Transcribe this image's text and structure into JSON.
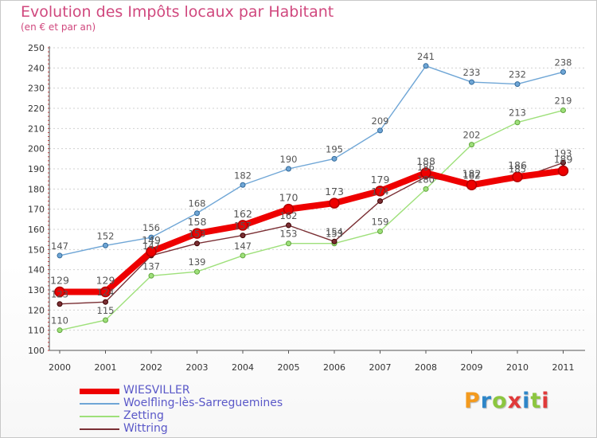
{
  "title": "Evolution des Impôts locaux par Habitant",
  "subtitle": "(en € et par an)",
  "logo": {
    "text": "Proxiti",
    "colors": [
      "#f39a1e",
      "#2e86c8",
      "#8cc63f",
      "#e03a3a",
      "#2e86c8",
      "#8cc63f",
      "#e03a3a"
    ]
  },
  "chart_data": {
    "type": "line",
    "title": "Evolution des Impôts locaux par Habitant",
    "subtitle": "(en € et par an)",
    "xlabel": "",
    "ylabel": "",
    "x": [
      "2000",
      "2001",
      "2002",
      "2003",
      "2004",
      "2005",
      "2006",
      "2007",
      "2008",
      "2009",
      "2010",
      "2011"
    ],
    "ylim": [
      100,
      250
    ],
    "yticks": [
      100,
      110,
      120,
      130,
      140,
      150,
      160,
      170,
      180,
      190,
      200,
      210,
      220,
      230,
      240,
      250
    ],
    "grid": "horizontal dashed",
    "legend_position": "bottom-left",
    "series": [
      {
        "name": "WIESVILLER",
        "color": "#ee0000",
        "emphasis": true,
        "values": [
          129,
          129,
          149,
          158,
          162,
          170,
          173,
          179,
          188,
          182,
          186,
          189
        ]
      },
      {
        "name": "Woelfling-lès-Sarreguemines",
        "color": "#6fa6d6",
        "values": [
          147,
          152,
          156,
          168,
          182,
          190,
          195,
          209,
          241,
          233,
          232,
          238
        ]
      },
      {
        "name": "Zetting",
        "color": "#9ee07a",
        "values": [
          110,
          115,
          137,
          139,
          147,
          153,
          153,
          159,
          180,
          202,
          213,
          219
        ]
      },
      {
        "name": "Wittring",
        "color": "#7a2f34",
        "values": [
          123,
          124,
          147,
          153,
          157,
          162,
          154,
          174,
          186,
          182,
          185,
          193
        ]
      }
    ]
  }
}
